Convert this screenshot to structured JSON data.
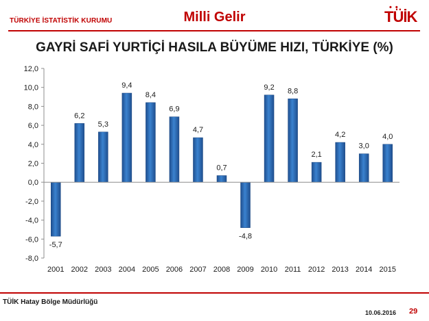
{
  "header": {
    "org_name": "TÜRKİYE İSTATİSTİK KURUMU",
    "slide_title": "Milli Gelir",
    "logo_text": "TÜİK"
  },
  "chart_data": {
    "type": "bar",
    "title": "GAYRİ SAFİ YURTİÇİ HASILA BÜYÜME HIZI, TÜRKİYE (%)",
    "xlabel": "",
    "ylabel": "",
    "categories": [
      "2001",
      "2002",
      "2003",
      "2004",
      "2005",
      "2006",
      "2007",
      "2008",
      "2009",
      "2010",
      "2011",
      "2012",
      "2013",
      "2014",
      "2015"
    ],
    "values": [
      -5.7,
      6.2,
      5.3,
      9.4,
      8.4,
      6.9,
      4.7,
      0.7,
      -4.8,
      9.2,
      8.8,
      2.1,
      4.2,
      3.0,
      4.0
    ],
    "value_labels": [
      "-5,7",
      "6,2",
      "5,3",
      "9,4",
      "8,4",
      "6,9",
      "4,7",
      "0,7",
      "-4,8",
      "9,2",
      "8,8",
      "2,1",
      "4,2",
      "3,0",
      "4,0"
    ],
    "ylim": [
      -8,
      12
    ],
    "yticks": [
      "12,0",
      "10,0",
      "8,0",
      "6,0",
      "4,0",
      "2,0",
      "0,0",
      "-2,0",
      "-4,0",
      "-6,0",
      "-8,0"
    ],
    "grid": false,
    "bar_color": "#2e6db4"
  },
  "footer": {
    "office": "TÜİK Hatay Bölge Müdürlüğü",
    "date": "10.06.2016",
    "page": "29"
  }
}
